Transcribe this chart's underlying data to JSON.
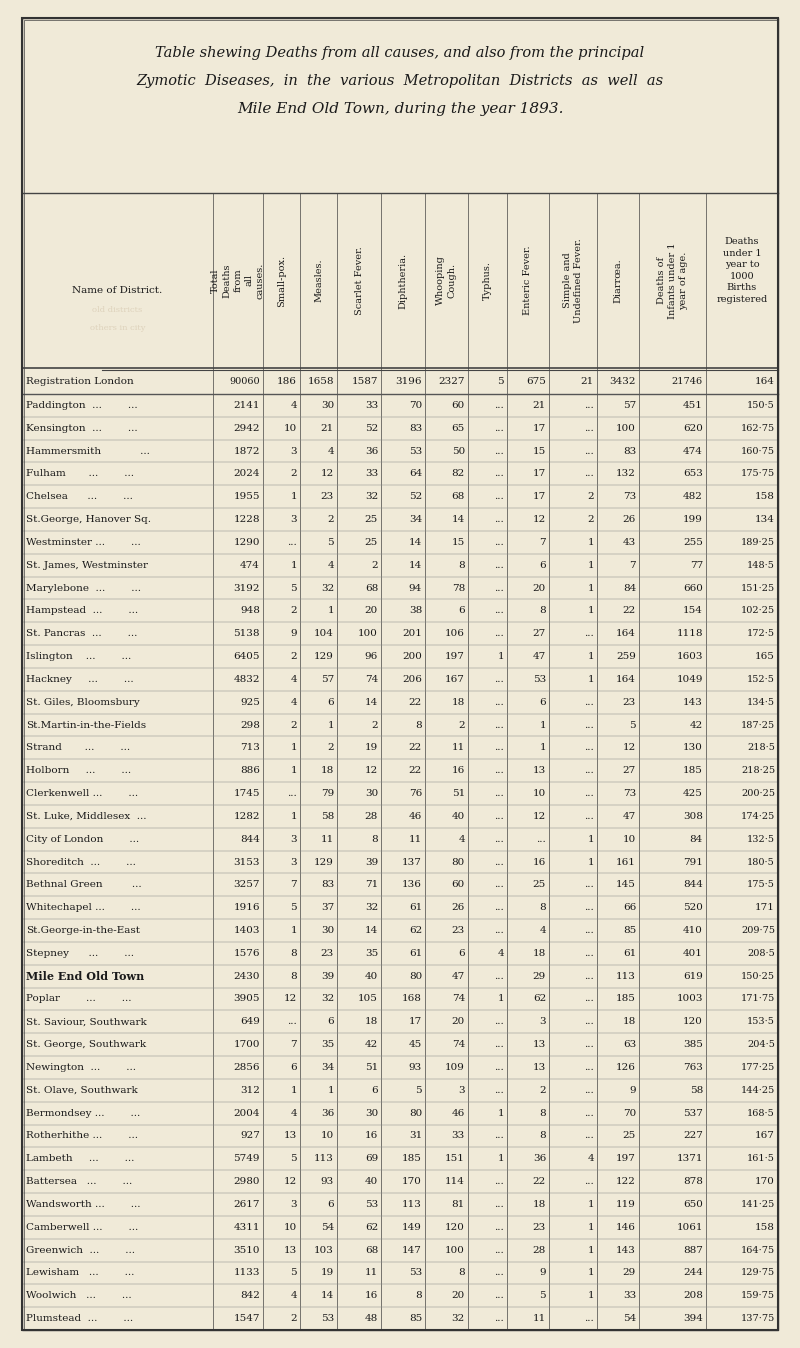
{
  "title_lines": [
    "Table shewing Deaths from all causes, and also from the principal",
    "Zymotic  Diseases,  in  the  various  Metropolitan  Districts  as  well  as",
    "Mile End Old Town, during the year 1893."
  ],
  "col_headers": [
    "Name of District.",
    "Total\nDeaths\nfrom\nall\ncauses.",
    "Small-pox.",
    "Measles.",
    "Scarlet Fever.",
    "Diphtheria.",
    "Whooping\nCough.",
    "Typhus.",
    "Enteric Fever.",
    "Simple and\nUndefined Fever.",
    "Diarrœa.",
    "Deaths of\nInfants under 1\nyear of age.",
    "Deaths\nunder 1\nyear to\n1000\nBirths\nregistered"
  ],
  "rows": [
    [
      "Registration London",
      "90060",
      "186",
      "1658",
      "1587",
      "3196",
      "2327",
      "5",
      "675",
      "21",
      "3432",
      "21746",
      "164"
    ],
    [
      "Paddington  ...        ...",
      "2141",
      "4",
      "30",
      "33",
      "70",
      "60",
      "...",
      "21",
      "...",
      "57",
      "451",
      "150·5"
    ],
    [
      "Kensington  ...        ...",
      "2942",
      "10",
      "21",
      "52",
      "83",
      "65",
      "...",
      "17",
      "...",
      "100",
      "620",
      "162·75"
    ],
    [
      "Hammersmith            ...",
      "1872",
      "3",
      "4",
      "36",
      "53",
      "50",
      "...",
      "15",
      "...",
      "83",
      "474",
      "160·75"
    ],
    [
      "Fulham       ...        ...",
      "2024",
      "2",
      "12",
      "33",
      "64",
      "82",
      "...",
      "17",
      "...",
      "132",
      "653",
      "175·75"
    ],
    [
      "Chelsea      ...        ...",
      "1955",
      "1",
      "23",
      "32",
      "52",
      "68",
      "...",
      "17",
      "2",
      "73",
      "482",
      "158"
    ],
    [
      "St.George, Hanover Sq.",
      "1228",
      "3",
      "2",
      "25",
      "34",
      "14",
      "...",
      "12",
      "2",
      "26",
      "199",
      "134"
    ],
    [
      "Westminster ...        ...",
      "1290",
      "...",
      "5",
      "25",
      "14",
      "15",
      "...",
      "7",
      "1",
      "43",
      "255",
      "189·25"
    ],
    [
      "St. James, Westminster",
      "474",
      "1",
      "4",
      "2",
      "14",
      "8",
      "...",
      "6",
      "1",
      "7",
      "77",
      "148·5"
    ],
    [
      "Marylebone  ...        ...",
      "3192",
      "5",
      "32",
      "68",
      "94",
      "78",
      "...",
      "20",
      "1",
      "84",
      "660",
      "151·25"
    ],
    [
      "Hampstead  ...        ...",
      "948",
      "2",
      "1",
      "20",
      "38",
      "6",
      "...",
      "8",
      "1",
      "22",
      "154",
      "102·25"
    ],
    [
      "St. Pancras  ...        ...",
      "5138",
      "9",
      "104",
      "100",
      "201",
      "106",
      "...",
      "27",
      "...",
      "164",
      "1118",
      "172·5"
    ],
    [
      "Islington    ...        ...",
      "6405",
      "2",
      "129",
      "96",
      "200",
      "197",
      "1",
      "47",
      "1",
      "259",
      "1603",
      "165"
    ],
    [
      "Hackney     ...        ...",
      "4832",
      "4",
      "57",
      "74",
      "206",
      "167",
      "...",
      "53",
      "1",
      "164",
      "1049",
      "152·5"
    ],
    [
      "St. Giles, Bloomsbury",
      "925",
      "4",
      "6",
      "14",
      "22",
      "18",
      "...",
      "6",
      "...",
      "23",
      "143",
      "134·5"
    ],
    [
      "St.Martin-in-the-Fields",
      "298",
      "2",
      "1",
      "2",
      "8",
      "2",
      "...",
      "1",
      "...",
      "5",
      "42",
      "187·25"
    ],
    [
      "Strand       ...        ...",
      "713",
      "1",
      "2",
      "19",
      "22",
      "11",
      "...",
      "1",
      "...",
      "12",
      "130",
      "218·5"
    ],
    [
      "Holborn     ...        ...",
      "886",
      "1",
      "18",
      "12",
      "22",
      "16",
      "...",
      "13",
      "...",
      "27",
      "185",
      "218·25"
    ],
    [
      "Clerkenwell ...        ...",
      "1745",
      "...",
      "79",
      "30",
      "76",
      "51",
      "...",
      "10",
      "...",
      "73",
      "425",
      "200·25"
    ],
    [
      "St. Luke, Middlesex  ...",
      "1282",
      "1",
      "58",
      "28",
      "46",
      "40",
      "...",
      "12",
      "...",
      "47",
      "308",
      "174·25"
    ],
    [
      "City of London        ...",
      "844",
      "3",
      "11",
      "8",
      "11",
      "4",
      "...",
      "...",
      "1",
      "10",
      "84",
      "132·5"
    ],
    [
      "Shoreditch  ...        ...",
      "3153",
      "3",
      "129",
      "39",
      "137",
      "80",
      "...",
      "16",
      "1",
      "161",
      "791",
      "180·5"
    ],
    [
      "Bethnal Green         ...",
      "3257",
      "7",
      "83",
      "71",
      "136",
      "60",
      "...",
      "25",
      "...",
      "145",
      "844",
      "175·5"
    ],
    [
      "Whitechapel ...        ...",
      "1916",
      "5",
      "37",
      "32",
      "61",
      "26",
      "...",
      "8",
      "...",
      "66",
      "520",
      "171"
    ],
    [
      "St.George-in-the-East",
      "1403",
      "1",
      "30",
      "14",
      "62",
      "23",
      "...",
      "4",
      "...",
      "85",
      "410",
      "209·75"
    ],
    [
      "Stepney      ...        ...",
      "1576",
      "8",
      "23",
      "35",
      "61",
      "6",
      "4",
      "18",
      "...",
      "61",
      "401",
      "208·5"
    ],
    [
      "Mile End Old Town",
      "2430",
      "8",
      "39",
      "40",
      "80",
      "47",
      "...",
      "29",
      "...",
      "113",
      "619",
      "150·25"
    ],
    [
      "Poplar        ...        ...",
      "3905",
      "12",
      "32",
      "105",
      "168",
      "74",
      "1",
      "62",
      "...",
      "185",
      "1003",
      "171·75"
    ],
    [
      "St. Saviour, Southwark",
      "649",
      "...",
      "6",
      "18",
      "17",
      "20",
      "...",
      "3",
      "...",
      "18",
      "120",
      "153·5"
    ],
    [
      "St. George, Southwark",
      "1700",
      "7",
      "35",
      "42",
      "45",
      "74",
      "...",
      "13",
      "...",
      "63",
      "385",
      "204·5"
    ],
    [
      "Newington  ...        ...",
      "2856",
      "6",
      "34",
      "51",
      "93",
      "109",
      "...",
      "13",
      "...",
      "126",
      "763",
      "177·25"
    ],
    [
      "St. Olave, Southwark",
      "312",
      "1",
      "1",
      "6",
      "5",
      "3",
      "...",
      "2",
      "...",
      "9",
      "58",
      "144·25"
    ],
    [
      "Bermondsey ...        ...",
      "2004",
      "4",
      "36",
      "30",
      "80",
      "46",
      "1",
      "8",
      "...",
      "70",
      "537",
      "168·5"
    ],
    [
      "Rotherhithe ...        ...",
      "927",
      "13",
      "10",
      "16",
      "31",
      "33",
      "...",
      "8",
      "...",
      "25",
      "227",
      "167"
    ],
    [
      "Lambeth     ...        ...",
      "5749",
      "5",
      "113",
      "69",
      "185",
      "151",
      "1",
      "36",
      "4",
      "197",
      "1371",
      "161·5"
    ],
    [
      "Battersea   ...        ...",
      "2980",
      "12",
      "93",
      "40",
      "170",
      "114",
      "...",
      "22",
      "...",
      "122",
      "878",
      "170"
    ],
    [
      "Wandsworth ...        ...",
      "2617",
      "3",
      "6",
      "53",
      "113",
      "81",
      "...",
      "18",
      "1",
      "119",
      "650",
      "141·25"
    ],
    [
      "Camberwell ...        ...",
      "4311",
      "10",
      "54",
      "62",
      "149",
      "120",
      "...",
      "23",
      "1",
      "146",
      "1061",
      "158"
    ],
    [
      "Greenwich  ...        ...",
      "3510",
      "13",
      "103",
      "68",
      "147",
      "100",
      "...",
      "28",
      "1",
      "143",
      "887",
      "164·75"
    ],
    [
      "Lewisham   ...        ...",
      "1133",
      "5",
      "19",
      "11",
      "53",
      "8",
      "...",
      "9",
      "1",
      "29",
      "244",
      "129·75"
    ],
    [
      "Woolwich   ...        ...",
      "842",
      "4",
      "14",
      "16",
      "8",
      "20",
      "...",
      "5",
      "1",
      "33",
      "208",
      "159·75"
    ],
    [
      "Plumstead  ...        ...",
      "1547",
      "2",
      "53",
      "48",
      "85",
      "32",
      "...",
      "11",
      "...",
      "54",
      "394",
      "137·75"
    ]
  ],
  "bg_color": "#f0ead8",
  "text_color": "#1a1a1a",
  "line_color": "#444444",
  "outer_lw": 1.5,
  "inner_lw": 0.5,
  "title_fontsize": 10.5,
  "header_fontsize": 7.0,
  "data_fontsize": 7.5,
  "name_fontsize": 7.5
}
